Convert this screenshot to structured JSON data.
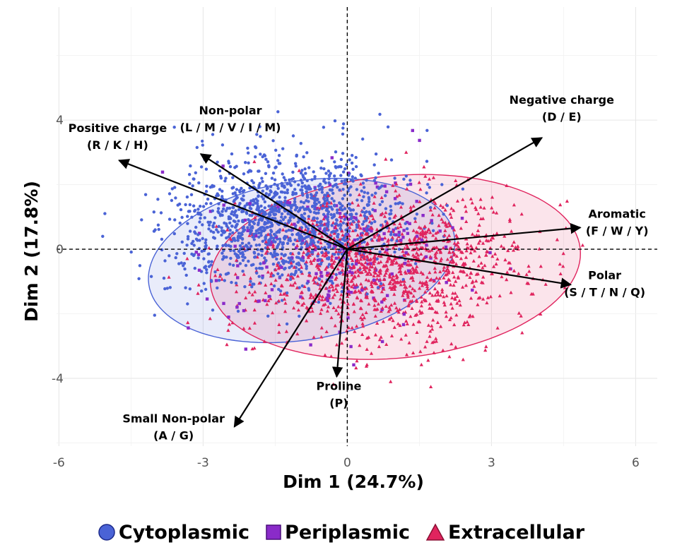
{
  "chart_data": {
    "type": "scatter",
    "subtype": "pca-biplot",
    "title": "",
    "xlabel": "Dim 1 (24.7%)",
    "ylabel": "Dim 2 (17.8%)",
    "xlim": [
      -6.05,
      6.45
    ],
    "ylim": [
      -6.1,
      7.5
    ],
    "x_ticks": [
      -6,
      -3,
      0,
      3,
      6
    ],
    "y_ticks": [
      -4,
      0,
      4
    ],
    "x_tick_labels": [
      "-6",
      "-3",
      "0",
      "3",
      "6"
    ],
    "y_tick_labels": [
      "-4",
      "0",
      "4"
    ],
    "grid": true,
    "reference_lines": [
      {
        "axis": "x",
        "value": 0,
        "style": "dashed"
      },
      {
        "axis": "y",
        "value": 0,
        "style": "dashed"
      }
    ],
    "legend_position": "bottom",
    "series": [
      {
        "name": "Cytoplasmic",
        "marker": "circle",
        "color": "#4a63d6",
        "center": [
          -1.3,
          0.9
        ],
        "spread": [
          1.2,
          1.0
        ],
        "ellipse_angle_deg": 20,
        "point_count": 1400
      },
      {
        "name": "Periplasmic",
        "marker": "square",
        "color": "#8a2bc9",
        "center": [
          -0.2,
          -0.2
        ],
        "spread": [
          1.4,
          1.2
        ],
        "ellipse_angle_deg": 15,
        "point_count": 180
      },
      {
        "name": "Extracellular",
        "marker": "triangle",
        "color": "#e0245e",
        "center": [
          0.8,
          -0.6
        ],
        "spread": [
          1.4,
          1.1
        ],
        "ellipse_angle_deg": 10,
        "point_count": 1300
      }
    ],
    "ellipses": [
      {
        "series": "Cytoplasmic",
        "center": [
          -0.95,
          -0.35
        ],
        "semi_axes": [
          3.3,
          2.4
        ],
        "angle_deg": 22,
        "color": "#4a63d6"
      },
      {
        "series": "Extracellular",
        "center": [
          1.0,
          -0.55
        ],
        "semi_axes": [
          3.9,
          2.8
        ],
        "angle_deg": 13,
        "color": "#e0245e"
      }
    ],
    "vectors": [
      {
        "label_line1": "Positive charge",
        "label_line2": "(R / K / H)",
        "x": -4.75,
        "y": 2.75
      },
      {
        "label_line1": "Non-polar",
        "label_line2": "(L / M / V / I / M)",
        "x": -3.05,
        "y": 2.95
      },
      {
        "label_line1": "Negative charge",
        "label_line2": "(D / E)",
        "x": 4.05,
        "y": 3.45
      },
      {
        "label_line1": "Aromatic",
        "label_line2": "(F / W / Y)",
        "x": 4.85,
        "y": 0.67
      },
      {
        "label_line1": "Polar",
        "label_line2": "(S / T / N / Q)",
        "x": 4.65,
        "y": -1.1
      },
      {
        "label_line1": "Proline",
        "label_line2": "(P)",
        "x": -0.22,
        "y": -3.95
      },
      {
        "label_line1": "Small Non-polar",
        "label_line2": "(A / G)",
        "x": -2.35,
        "y": -5.5
      }
    ],
    "legend": [
      {
        "label": "Cytoplasmic",
        "marker": "circle",
        "color": "#4a63d6"
      },
      {
        "label": "Periplasmic",
        "marker": "square",
        "color": "#8a2bc9"
      },
      {
        "label": "Extracellular",
        "marker": "triangle",
        "color": "#e0245e"
      }
    ]
  }
}
